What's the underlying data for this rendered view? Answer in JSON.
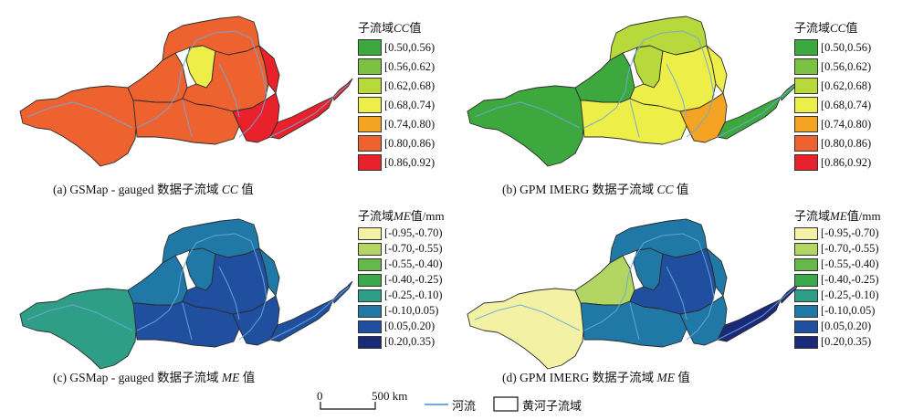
{
  "cc_legend": {
    "title_prefix": "子流域",
    "title_var": "CC",
    "title_suffix": "值",
    "classes": [
      {
        "label": "[0.50,0.56)",
        "color": "#3da83d"
      },
      {
        "label": "[0.56,0.62)",
        "color": "#7cc242"
      },
      {
        "label": "[0.62,0.68)",
        "color": "#b8d93c"
      },
      {
        "label": "[0.68,0.74)",
        "color": "#eeee48"
      },
      {
        "label": "[0.74,0.80)",
        "color": "#f5a323"
      },
      {
        "label": "[0.80,0.86)",
        "color": "#ee6230"
      },
      {
        "label": "[0.86,0.92)",
        "color": "#e8212b"
      }
    ]
  },
  "me_legend": {
    "title_prefix": "子流域",
    "title_var": "ME",
    "title_suffix": "值/mm",
    "classes": [
      {
        "label": "[-0.95,-0.70)",
        "color": "#f3f2a4"
      },
      {
        "label": "[-0.70,-0.55)",
        "color": "#b3d562"
      },
      {
        "label": "[-0.55,-0.40)",
        "color": "#66b84a"
      },
      {
        "label": "[-0.40,-0.25)",
        "color": "#3aa94c"
      },
      {
        "label": "[-0.25,-0.10)",
        "color": "#2e9f86"
      },
      {
        "label": "[-0.10,0.05)",
        "color": "#1f78a6"
      },
      {
        "label": "[0.05,0.20)",
        "color": "#1f4f9e"
      },
      {
        "label": "[0.20,0.35)",
        "color": "#1b2a78"
      }
    ]
  },
  "panels": [
    {
      "id": "a",
      "caption_prefix": "(a) GSMap - gauged 数据子流域 ",
      "caption_var": "CC",
      "caption_suffix": " 值",
      "legend": "cc",
      "regions": {
        "west": 5,
        "nw": 5,
        "north": 5,
        "nc": 3,
        "center": 5,
        "mid_east": 5,
        "east": 6,
        "se": 6,
        "tail": 6
      }
    },
    {
      "id": "b",
      "caption_prefix": "(b) GPM IMERG 数据子流域 ",
      "caption_var": "CC",
      "caption_suffix": " 值",
      "legend": "cc",
      "regions": {
        "west": 0,
        "nw": 0,
        "north": 2,
        "nc": 2,
        "center": 3,
        "mid_east": 3,
        "east": 3,
        "se": 4,
        "tail": 0
      }
    },
    {
      "id": "c",
      "caption_prefix": "(c) GSMap - gauged 数据子流域 ",
      "caption_var": "ME",
      "caption_suffix": " 值",
      "legend": "me",
      "regions": {
        "west": 4,
        "nw": 5,
        "north": 5,
        "nc": 5,
        "center": 6,
        "mid_east": 6,
        "east": 5,
        "se": 6,
        "tail": 6
      }
    },
    {
      "id": "d",
      "caption_prefix": "(d) GPM IMERG 数据子流域 ",
      "caption_var": "ME",
      "caption_suffix": " 值",
      "legend": "me",
      "regions": {
        "west": 0,
        "nw": 1,
        "north": 5,
        "nc": 5,
        "center": 5,
        "mid_east": 6,
        "east": 5,
        "se": 5,
        "tail": 7
      }
    }
  ],
  "scale_bar": {
    "start": "0",
    "end": "500 km"
  },
  "map_legend": {
    "river": "河流",
    "subbasin": "黄河子流域",
    "river_color": "#6fa8dc"
  }
}
